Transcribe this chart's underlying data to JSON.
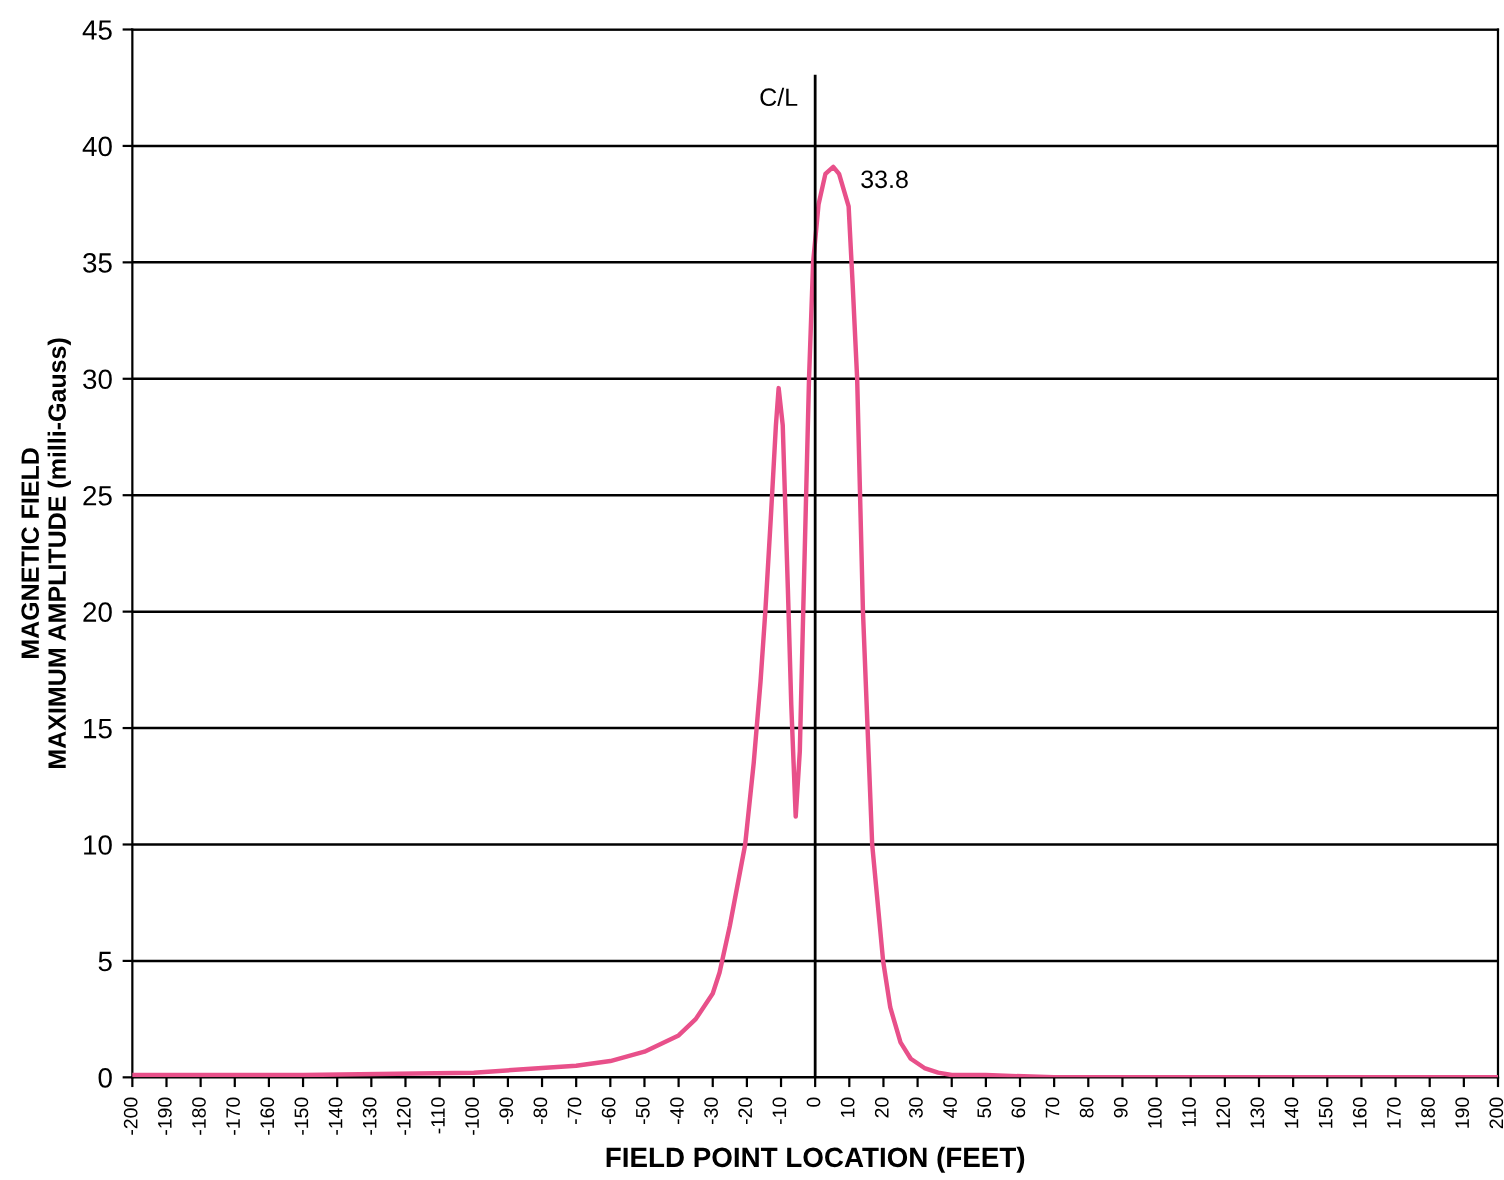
{
  "chart_data": {
    "type": "line",
    "xlabel": "FIELD POINT LOCATION (FEET)",
    "ylabel": "MAGNETIC FIELD\nMAXIMUM AMPLITUDE (milli-Gauss)",
    "series": [
      {
        "color": "#e8508a",
        "x": [
          -200,
          -150,
          -100,
          -80,
          -70,
          -60,
          -50,
          -40,
          -35,
          -30,
          -28,
          -25,
          -20.5,
          -18,
          -16,
          -14.6,
          -13,
          -11.5,
          -10.7,
          -9.5,
          -8,
          -7,
          -5.7,
          -4.5,
          -3.5,
          -1.8,
          -0.6,
          1,
          3,
          5.3,
          7,
          9.8,
          11,
          12.3,
          14,
          16.7,
          19.9,
          22,
          25,
          28,
          32,
          36,
          40,
          50,
          70,
          100,
          150,
          200
        ],
        "values": [
          0.1,
          0.1,
          0.2,
          0.4,
          0.5,
          0.7,
          1.1,
          1.8,
          2.5,
          3.6,
          4.5,
          6.5,
          10,
          13.5,
          17,
          20,
          24,
          28,
          29.6,
          28,
          21,
          16,
          11.2,
          14,
          20,
          30,
          35,
          37.5,
          38.8,
          39.1,
          38.8,
          37.4,
          34,
          30,
          20,
          10,
          5,
          3,
          1.5,
          0.8,
          0.4,
          0.2,
          0.1,
          0.1,
          0,
          0,
          0,
          0
        ]
      }
    ],
    "xlim": [
      -200,
      200
    ],
    "xticks": [
      -200,
      -190,
      -180,
      -170,
      -160,
      -150,
      -140,
      -130,
      -120,
      -110,
      -100,
      -90,
      -80,
      -70,
      -60,
      -50,
      -40,
      -30,
      -20,
      -10,
      0,
      10,
      20,
      30,
      40,
      50,
      60,
      70,
      80,
      90,
      100,
      110,
      120,
      130,
      140,
      150,
      160,
      170,
      180,
      190,
      200
    ],
    "ylim": [
      0,
      45
    ],
    "yticks": [
      0,
      5,
      10,
      15,
      20,
      25,
      30,
      35,
      40,
      45
    ],
    "grid": "y",
    "marker": "none",
    "line_style": "solid",
    "ref_lines": [
      {
        "axis": "x",
        "value": 0,
        "label": "C/L",
        "color": "#000000"
      }
    ],
    "annotations": [
      "33.8"
    ]
  }
}
